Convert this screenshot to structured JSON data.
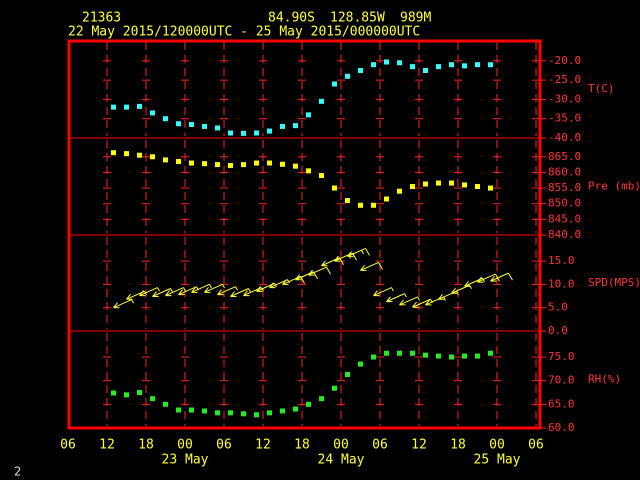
{
  "header": {
    "station": "21363",
    "lat": "84.90S",
    "lon": "128.85W",
    "elev": "989M",
    "period": "22 May 2015/120000UTC - 25 May 2015/000000UTC",
    "page_number": "2"
  },
  "chart_data": [
    {
      "type": "scatter",
      "ylabel": "T(C)",
      "color": "#33ffff",
      "x": [
        7,
        9,
        11,
        13,
        15,
        17,
        19,
        21,
        23,
        25,
        27,
        29,
        31,
        33,
        35,
        37,
        39,
        41,
        43,
        45,
        47,
        49,
        51,
        53,
        55,
        57,
        59,
        61,
        63,
        65
      ],
      "values": [
        -32,
        -32,
        -31.8,
        -33.5,
        -35,
        -36.3,
        -36.5,
        -37,
        -37.4,
        -38.7,
        -38.8,
        -38.7,
        -38.2,
        -37,
        -36.8,
        -34,
        -30.5,
        -26,
        -24,
        -22.5,
        -21,
        -20.3,
        -20.5,
        -21.5,
        -22.5,
        -21.5,
        -21,
        -21.3,
        -21,
        -21
      ],
      "xlim": [
        0,
        72
      ],
      "ylim": [
        -40,
        -14.6
      ],
      "yticks": [
        {
          "value": -40,
          "label": "-40.0"
        },
        {
          "value": -35,
          "label": "-35.0"
        },
        {
          "value": -30,
          "label": "-30.0"
        },
        {
          "value": -25,
          "label": "-25.0"
        },
        {
          "value": -20,
          "label": "-20.0"
        }
      ]
    },
    {
      "type": "scatter",
      "ylabel": "Pre (mb)",
      "color": "#ffff00",
      "x": [
        7,
        9,
        11,
        13,
        15,
        17,
        19,
        21,
        23,
        25,
        27,
        29,
        31,
        33,
        35,
        37,
        39,
        41,
        43,
        45,
        47,
        49,
        51,
        53,
        55,
        57,
        59,
        61,
        63,
        65
      ],
      "values": [
        866.3,
        866,
        865.5,
        865,
        864,
        863.5,
        863,
        862.8,
        862.5,
        862.2,
        862.5,
        863,
        863,
        862.6,
        862,
        860.5,
        859,
        855,
        851,
        849.5,
        849.5,
        851.5,
        854,
        855.5,
        856.3,
        856.6,
        856.6,
        856,
        855.5,
        855
      ],
      "xlim": [
        0,
        72
      ],
      "ylim": [
        840,
        871
      ],
      "yticks": [
        {
          "value": 840,
          "label": "840.0"
        },
        {
          "value": 845,
          "label": "845.0"
        },
        {
          "value": 850,
          "label": "850.0"
        },
        {
          "value": 855,
          "label": "855.0"
        },
        {
          "value": 860,
          "label": "860.0"
        },
        {
          "value": 865,
          "label": "865.0"
        }
      ]
    },
    {
      "type": "barb",
      "ylabel": "SPD(MPS)",
      "color": "#ffff33",
      "x": [
        7,
        9,
        11,
        13,
        15,
        17,
        19,
        21,
        23,
        25,
        27,
        29,
        31,
        33,
        35,
        37,
        39,
        41,
        43,
        45,
        47,
        49,
        51,
        53,
        55,
        57,
        59,
        61,
        63,
        65
      ],
      "values": [
        5,
        6.8,
        7.6,
        7.4,
        7.6,
        7.8,
        8.3,
        8.3,
        7.8,
        7.4,
        7.6,
        8.5,
        9.3,
        10,
        11,
        12,
        14,
        15,
        16,
        13,
        7.6,
        6.3,
        5.6,
        5.1,
        5.6,
        6.8,
        8.1,
        9.6,
        10.5,
        10.7
      ],
      "xlim": [
        0,
        72
      ],
      "ylim": [
        0,
        20.6
      ],
      "yticks": [
        {
          "value": 0,
          "label": "0.0"
        },
        {
          "value": 5,
          "label": "5.0"
        },
        {
          "value": 10,
          "label": "10.0"
        },
        {
          "value": 15,
          "label": "15.0"
        }
      ]
    },
    {
      "type": "scatter",
      "ylabel": "RH(%)",
      "color": "#22ee22",
      "x": [
        7,
        9,
        11,
        13,
        15,
        17,
        19,
        21,
        23,
        25,
        27,
        29,
        31,
        33,
        35,
        37,
        39,
        41,
        43,
        45,
        47,
        49,
        51,
        53,
        55,
        57,
        59,
        61,
        63,
        65
      ],
      "values": [
        67.4,
        67,
        67.5,
        66.2,
        65,
        63.8,
        63.8,
        63.6,
        63.2,
        63.2,
        63,
        62.8,
        63.2,
        63.6,
        64,
        65,
        66.2,
        68.4,
        71.3,
        73.5,
        75,
        75.8,
        75.8,
        75.8,
        75.4,
        75.2,
        75,
        75.2,
        75.2,
        75.8
      ],
      "xlim": [
        0,
        72
      ],
      "ylim": [
        60,
        80.5
      ],
      "yticks": [
        {
          "value": 60,
          "label": "60.0"
        },
        {
          "value": 65,
          "label": "65.0"
        },
        {
          "value": 70,
          "label": "70.0"
        },
        {
          "value": 75,
          "label": "75.0"
        }
      ],
      "xticks": [
        {
          "value": 0,
          "label": "06"
        },
        {
          "value": 6,
          "label": "12"
        },
        {
          "value": 12,
          "label": "18"
        },
        {
          "value": 18,
          "label": "00"
        },
        {
          "value": 24,
          "label": "06"
        },
        {
          "value": 30,
          "label": "12"
        },
        {
          "value": 36,
          "label": "18"
        },
        {
          "value": 42,
          "label": "00"
        },
        {
          "value": 48,
          "label": "06"
        },
        {
          "value": 54,
          "label": "12"
        },
        {
          "value": 60,
          "label": "18"
        },
        {
          "value": 66,
          "label": "00"
        },
        {
          "value": 72,
          "label": "06"
        }
      ],
      "day_labels": [
        {
          "value": 18,
          "label": "23 May"
        },
        {
          "value": 42,
          "label": "24 May"
        },
        {
          "value": 66,
          "label": "25 May"
        }
      ]
    }
  ]
}
